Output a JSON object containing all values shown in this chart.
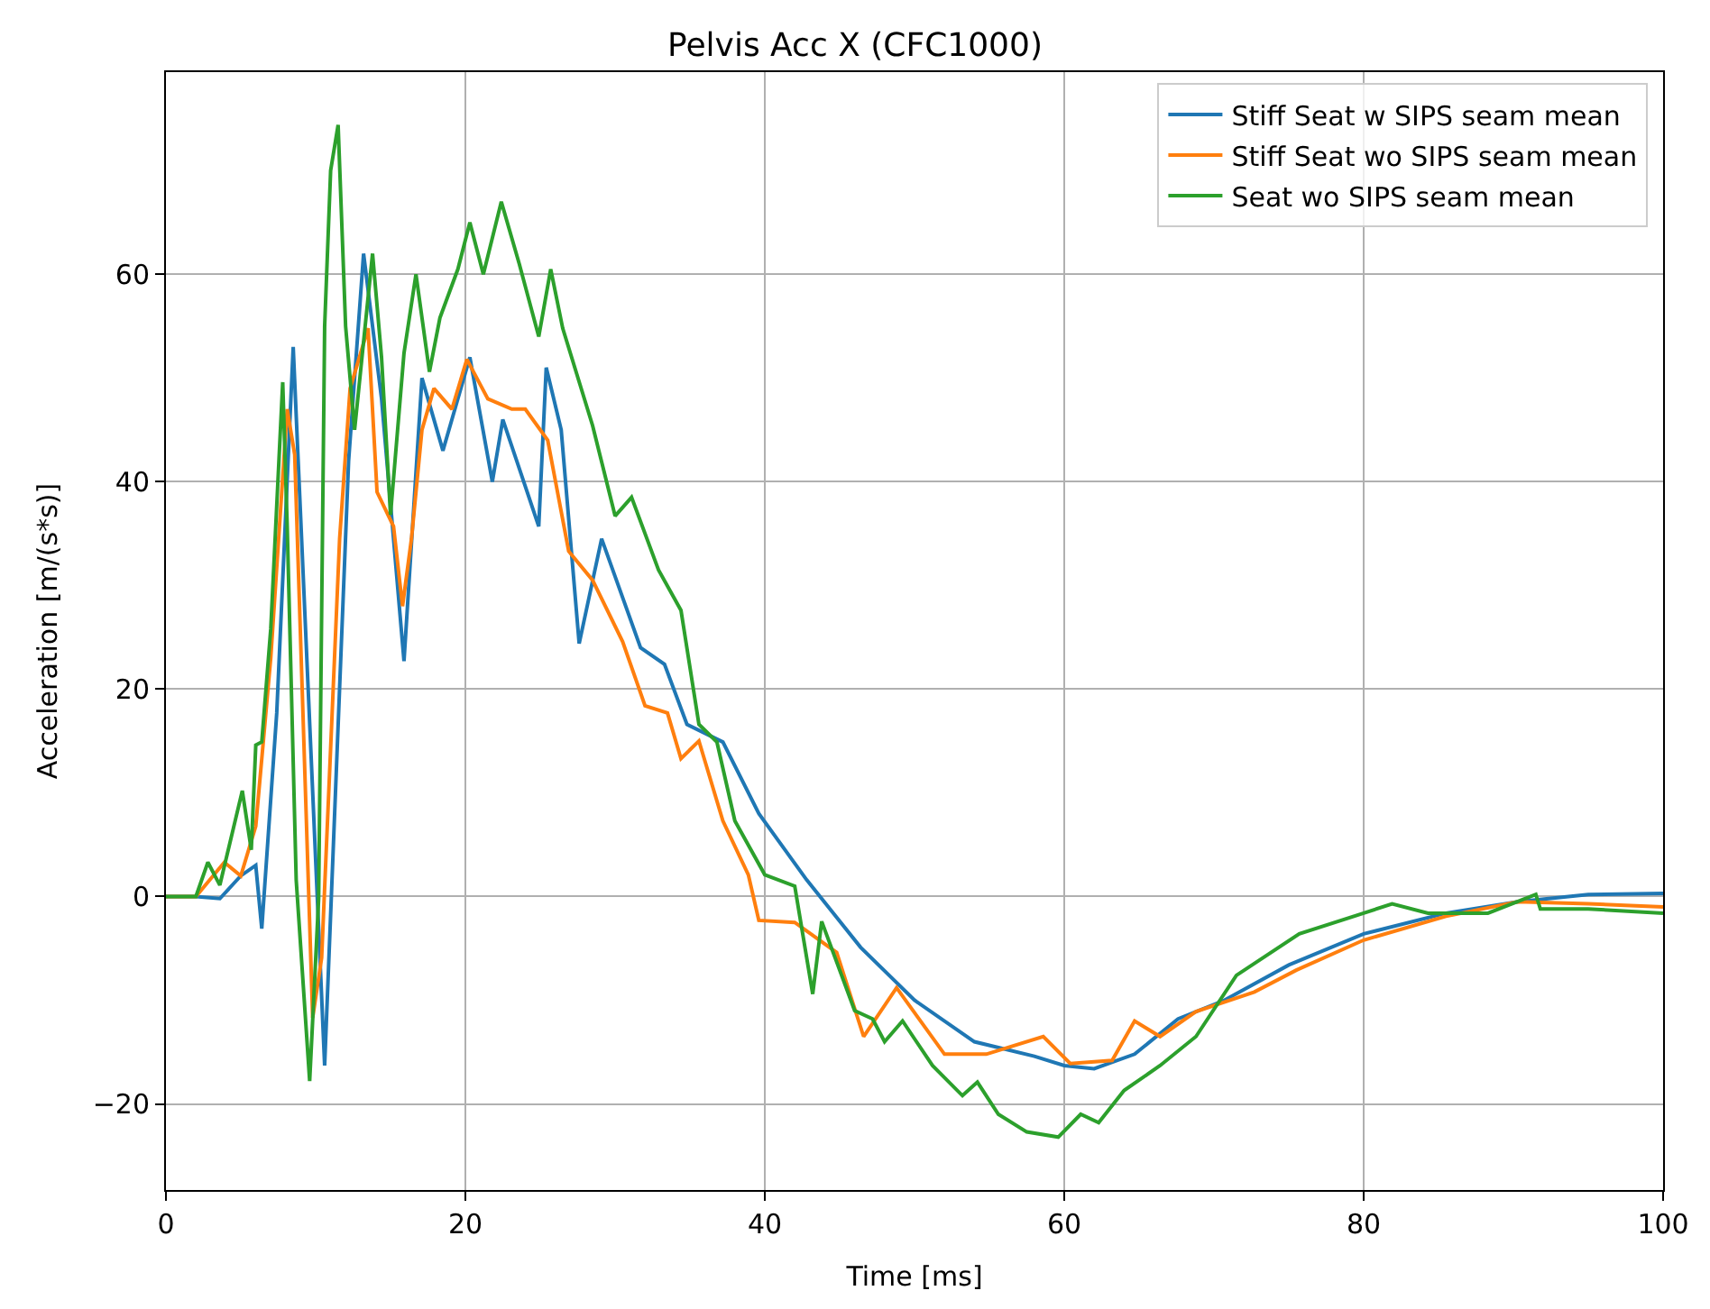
{
  "chart_data": {
    "type": "line",
    "title": "Pelvis Acc X (CFC1000)",
    "xlabel": "Time [ms]",
    "ylabel": "Acceleration [m/(s*s)]",
    "xlim": [
      0,
      100
    ],
    "xticks": [
      0,
      20,
      40,
      60,
      80,
      100
    ],
    "ylim": [
      -28.3,
      79.5
    ],
    "yticks": [
      {
        "value": -20,
        "label": "−20"
      },
      0,
      20,
      40,
      60
    ],
    "grid": true,
    "legend": "top right",
    "line_style": "solid",
    "series": [
      {
        "name": "Stiff Seat w SIPS seam mean",
        "color": "#1f77b4",
        "x": [
          0,
          2,
          3.6,
          5,
          6,
          6.4,
          7.4,
          8.5,
          10.6,
          12.2,
          13.2,
          14.4,
          15.9,
          17.1,
          18.5,
          20.3,
          21.8,
          22.5,
          24.9,
          25.4,
          26.4,
          27.6,
          29.1,
          31.7,
          33.3,
          34.8,
          37.2,
          39.6,
          42.8,
          46.4,
          50,
          54,
          58,
          60,
          62,
          64.7,
          67.6,
          70.7,
          75,
          80,
          85.5,
          90.3,
          95,
          100
        ],
        "values": [
          0,
          0,
          -0.2,
          2,
          3,
          -3.1,
          17.7,
          53,
          -16.3,
          42,
          62,
          48,
          22.7,
          50,
          43,
          52,
          40,
          46,
          35.7,
          51,
          45,
          24.4,
          34.5,
          24,
          22.4,
          16.6,
          14.9,
          8,
          1.6,
          -4.9,
          -10,
          -14,
          -15.4,
          -16.3,
          -16.6,
          -15.2,
          -11.8,
          -10,
          -6.6,
          -3.6,
          -1.6,
          -0.5,
          0.2,
          0.3
        ]
      },
      {
        "name": "Stiff Seat wo SIPS seam mean",
        "color": "#ff7f0e",
        "x": [
          0,
          2,
          3.9,
          5,
          6,
          7,
          8.1,
          8.6,
          9.8,
          10.4,
          11.6,
          12.3,
          13.5,
          14.1,
          15.2,
          15.8,
          16.4,
          17.1,
          17.9,
          19.1,
          20.1,
          21.5,
          23.1,
          24,
          25.5,
          26.9,
          28.5,
          30.5,
          32,
          33.5,
          34.4,
          35.6,
          37.2,
          38.9,
          39.6,
          42,
          44.8,
          46.6,
          48.8,
          52,
          54.8,
          58.6,
          60.4,
          63.2,
          64.7,
          66.4,
          68.8,
          72.7,
          75.5,
          80,
          85.5,
          90.3,
          95,
          100
        ],
        "values": [
          0,
          0,
          3.3,
          2,
          6.8,
          23,
          47,
          42.6,
          -11.7,
          -5.9,
          34.5,
          49,
          54.8,
          39,
          35.7,
          28,
          34.5,
          45,
          49,
          47,
          51.8,
          48,
          47,
          47,
          44,
          33.3,
          30.5,
          24.6,
          18.4,
          17.7,
          13.3,
          15,
          7.3,
          2.1,
          -2.3,
          -2.5,
          -5.4,
          -13.5,
          -8.8,
          -15.2,
          -15.2,
          -13.5,
          -16.1,
          -15.8,
          -12,
          -13.5,
          -11.1,
          -9.2,
          -7.1,
          -4.2,
          -1.9,
          -0.5,
          -0.7,
          -1
        ]
      },
      {
        "name": "Seat wo SIPS seam mean",
        "color": "#2ca02c",
        "x": [
          0,
          2,
          2.8,
          3.6,
          5.1,
          5.7,
          6,
          6.4,
          7,
          7.8,
          8.1,
          8.7,
          9.6,
          10.2,
          10.6,
          11,
          11.5,
          12,
          12.6,
          13.8,
          14.4,
          15,
          15.9,
          16.7,
          17.6,
          18.3,
          19.5,
          20.3,
          21.2,
          22.4,
          23.6,
          24.9,
          25.7,
          26.5,
          28.5,
          30,
          31.1,
          32.9,
          34.4,
          35.6,
          36.8,
          38,
          40,
          42,
          43.2,
          43.8,
          46,
          47.2,
          48,
          49.2,
          51.2,
          53.2,
          54.2,
          55.6,
          57.5,
          59.6,
          61.1,
          62.3,
          64,
          66.4,
          68.8,
          71.5,
          75.7,
          80,
          81.9,
          84.3,
          88.3,
          91.5,
          91.8,
          95,
          100
        ],
        "values": [
          0,
          0,
          3.3,
          1.1,
          10.2,
          4.5,
          14.6,
          14.9,
          25.8,
          49.6,
          35.7,
          1.6,
          -17.8,
          -0.2,
          55,
          70,
          74.4,
          55,
          45,
          62,
          52,
          36.8,
          52.4,
          60,
          50.6,
          55.8,
          60.5,
          65,
          60,
          67,
          61,
          54,
          60.5,
          54.8,
          45.4,
          36.7,
          38.5,
          31.5,
          27.6,
          16.6,
          14.9,
          7.3,
          2.1,
          1,
          -9.4,
          -2.4,
          -11,
          -11.8,
          -14,
          -12,
          -16.3,
          -19.2,
          -17.9,
          -21,
          -22.7,
          -23.2,
          -21,
          -21.8,
          -18.7,
          -16.3,
          -13.5,
          -7.6,
          -3.6,
          -1.6,
          -0.7,
          -1.6,
          -1.6,
          0.2,
          -1.2,
          -1.2,
          -1.6
        ]
      }
    ]
  }
}
